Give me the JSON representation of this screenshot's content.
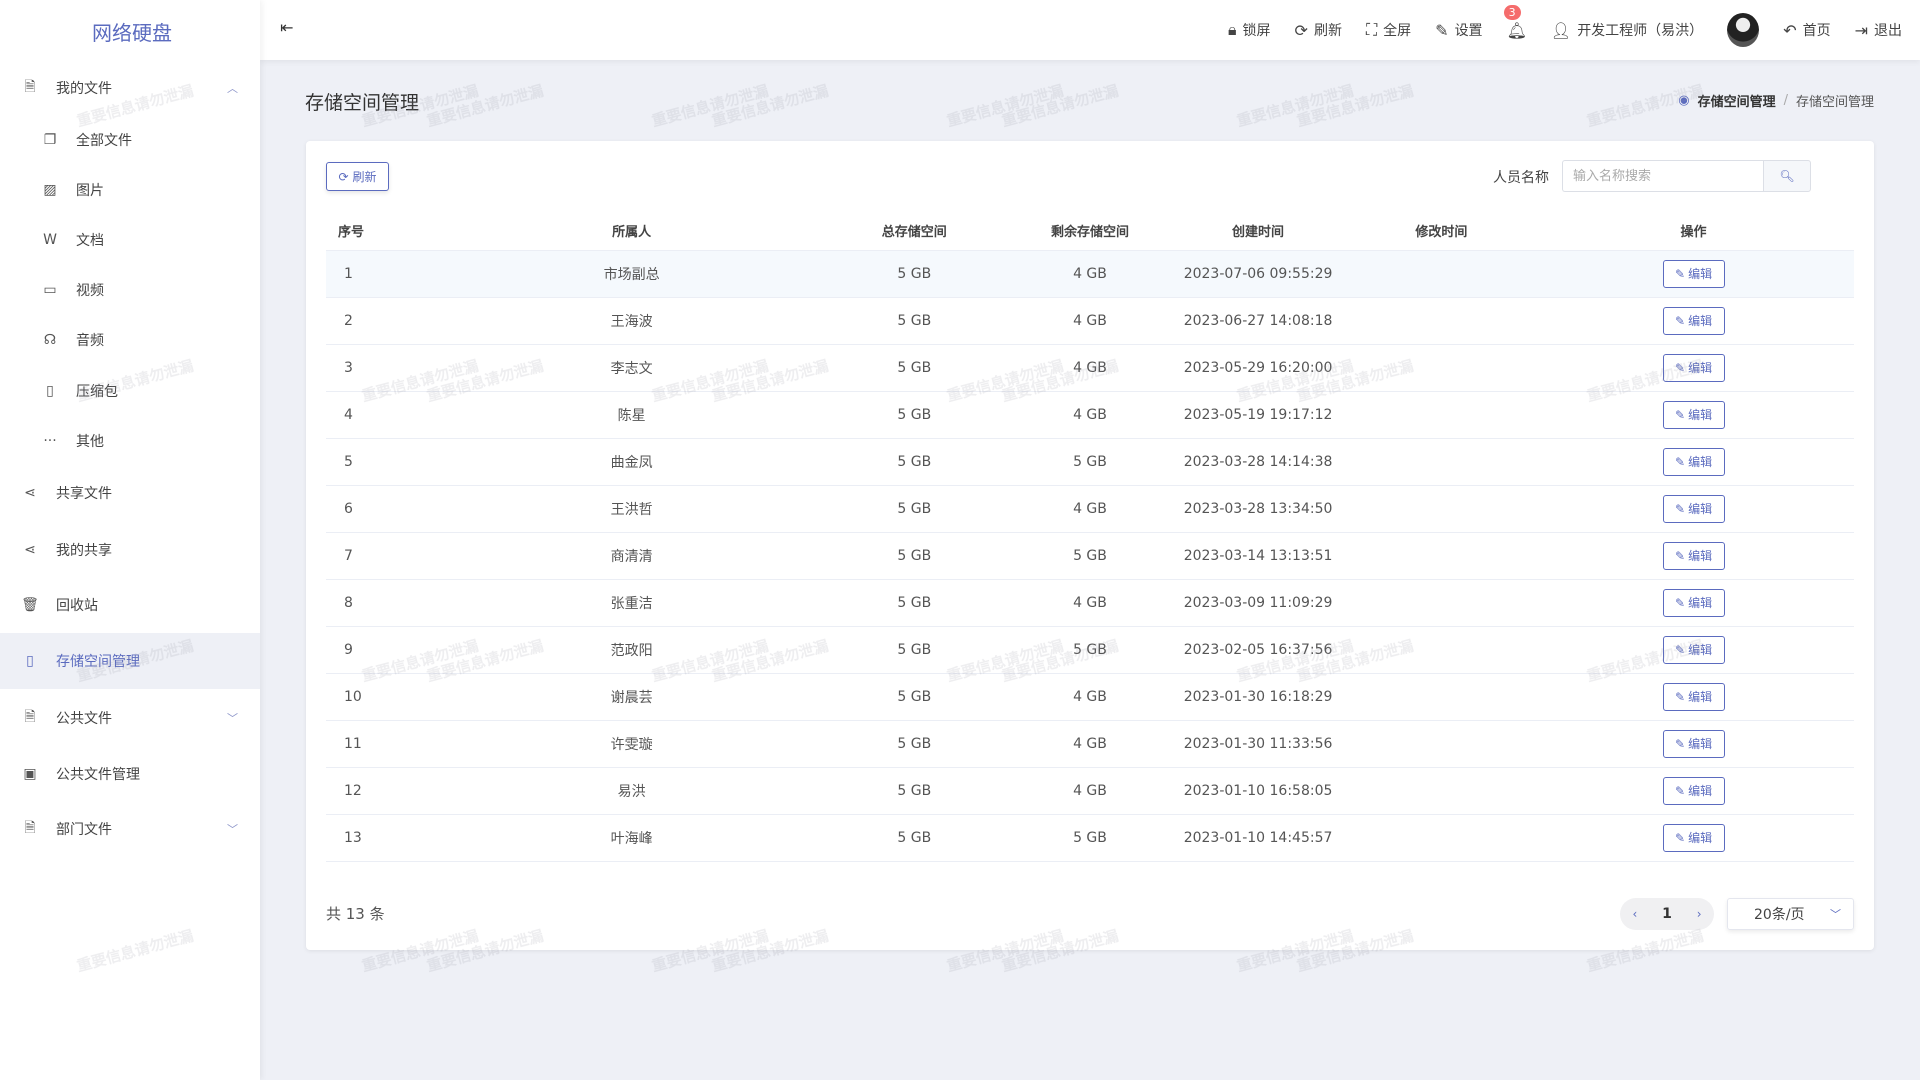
{
  "app": {
    "title": "网络硬盘",
    "watermark": "重要信息请勿泄漏"
  },
  "sidebar": {
    "items": [
      {
        "label": "我的文件",
        "icon": "file-icon",
        "expanded": true
      },
      {
        "label": "全部文件",
        "icon": "copy-icon",
        "sub": true
      },
      {
        "label": "图片",
        "icon": "image-icon",
        "sub": true
      },
      {
        "label": "文档",
        "icon": "word-doc-icon",
        "sub": true
      },
      {
        "label": "视频",
        "icon": "video-icon",
        "sub": true
      },
      {
        "label": "音频",
        "icon": "headphones-icon",
        "sub": true
      },
      {
        "label": "压缩包",
        "icon": "zip-icon",
        "sub": true
      },
      {
        "label": "其他",
        "icon": "more-icon",
        "sub": true
      },
      {
        "label": "共享文件",
        "icon": "share-icon"
      },
      {
        "label": "我的共享",
        "icon": "share-icon"
      },
      {
        "label": "回收站",
        "icon": "trash-icon"
      },
      {
        "label": "存储空间管理",
        "icon": "sd-card-icon",
        "active": true
      },
      {
        "label": "公共文件",
        "icon": "file-icon",
        "expandable": true
      },
      {
        "label": "公共文件管理",
        "icon": "folder-gear-icon"
      },
      {
        "label": "部门文件",
        "icon": "file-icon",
        "expandable": true
      }
    ]
  },
  "header": {
    "lock": "锁屏",
    "refresh": "刷新",
    "fullscreen": "全屏",
    "settings": "设置",
    "notifications": "3",
    "user": "开发工程师（易洪）",
    "home": "首页",
    "logout": "退出"
  },
  "page": {
    "title": "存储空间管理",
    "breadcrumb": [
      "存储空间管理",
      "存储空间管理"
    ]
  },
  "toolbar": {
    "refresh": "刷新",
    "search_label": "人员名称",
    "search_placeholder": "输入名称搜索",
    "search_value": ""
  },
  "table": {
    "columns": [
      "序号",
      "所属人",
      "总存储空间",
      "剩余存储空间",
      "创建时间",
      "修改时间",
      "操作"
    ],
    "action_label": "编辑",
    "rows": [
      [
        "1",
        "市场副总",
        "5 GB",
        "4 GB",
        "2023-07-06 09:55:29",
        ""
      ],
      [
        "2",
        "王海波",
        "5 GB",
        "4 GB",
        "2023-06-27 14:08:18",
        ""
      ],
      [
        "3",
        "李志文",
        "5 GB",
        "4 GB",
        "2023-05-29 16:20:00",
        ""
      ],
      [
        "4",
        "陈星",
        "5 GB",
        "4 GB",
        "2023-05-19 19:17:12",
        ""
      ],
      [
        "5",
        "曲金凤",
        "5 GB",
        "5 GB",
        "2023-03-28 14:14:38",
        ""
      ],
      [
        "6",
        "王洪哲",
        "5 GB",
        "4 GB",
        "2023-03-28 13:34:50",
        ""
      ],
      [
        "7",
        "商清清",
        "5 GB",
        "5 GB",
        "2023-03-14 13:13:51",
        ""
      ],
      [
        "8",
        "张重洁",
        "5 GB",
        "4 GB",
        "2023-03-09 11:09:29",
        ""
      ],
      [
        "9",
        "范政阳",
        "5 GB",
        "5 GB",
        "2023-02-05 16:37:56",
        ""
      ],
      [
        "10",
        "谢晨芸",
        "5 GB",
        "4 GB",
        "2023-01-30 16:18:29",
        ""
      ],
      [
        "11",
        "许雯璇",
        "5 GB",
        "4 GB",
        "2023-01-30 11:33:56",
        ""
      ],
      [
        "12",
        "易洪",
        "5 GB",
        "4 GB",
        "2023-01-10 16:58:05",
        ""
      ],
      [
        "13",
        "叶海峰",
        "5 GB",
        "5 GB",
        "2023-01-10 14:45:57",
        ""
      ]
    ]
  },
  "pagination": {
    "total": "共 13 条",
    "current": "1",
    "page_size": "20条/页"
  },
  "colors": {
    "accent": "#5b6bbf",
    "badge": "#f56c6c",
    "background": "#eef0f6"
  }
}
